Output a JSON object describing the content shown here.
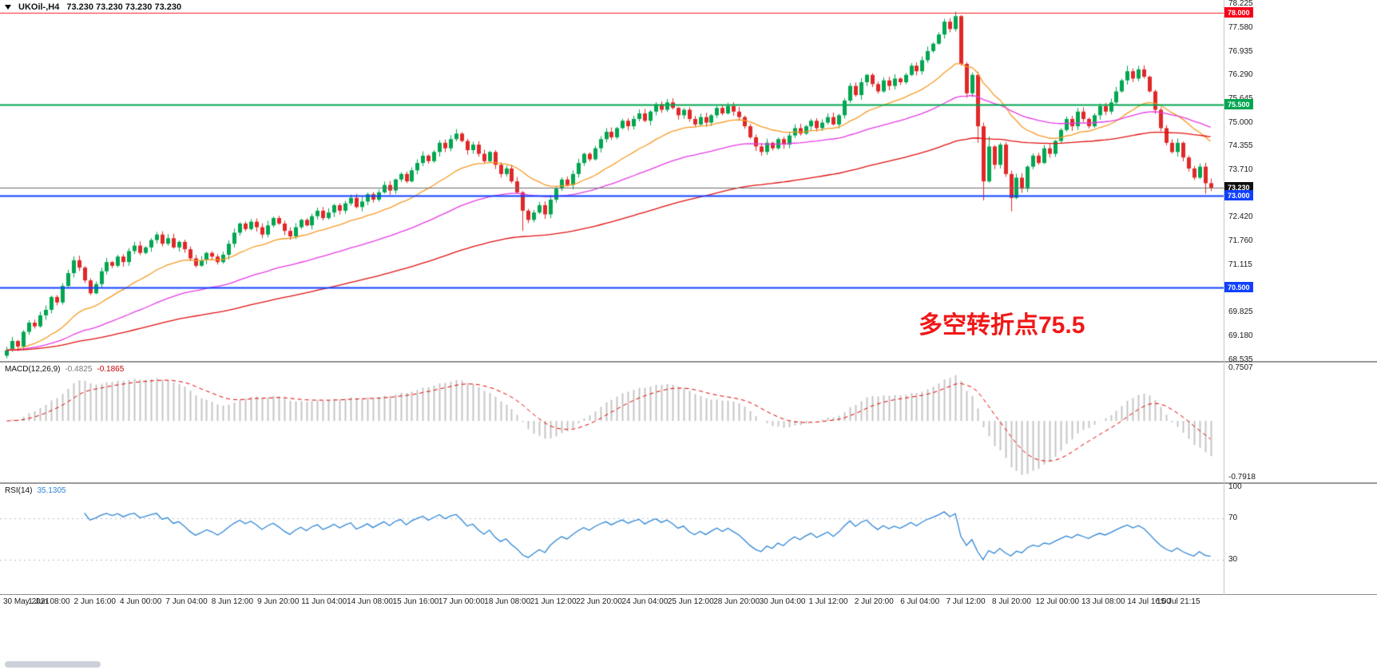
{
  "symbol_bar": {
    "symbol": "UKOil-,H4",
    "ohlc": "73.230 73.230 73.230 73.230"
  },
  "annotation": {
    "text": "多空转折点75.5",
    "color": "#f01818"
  },
  "colors": {
    "up": "#00a650",
    "down": "#e02828",
    "ma_fast": "#f59a23",
    "ma_mid": "#e53ae5",
    "ma_slow": "#e01010",
    "hline_red": "#ff1a1a",
    "hline_green": "#00a650",
    "hline_blue": "#1040ff",
    "price_line": "#6b6b6b",
    "macd_hist": "#c4c4c4",
    "macd_signal": "#e00000",
    "rsi_line": "#2f86d5",
    "rsi_level": "#b6bccd",
    "badge_current": "#101010"
  },
  "price_axis": {
    "ticks": [
      {
        "value": 78.225,
        "label": "78.225"
      },
      {
        "value": 77.58,
        "label": "77.580"
      },
      {
        "value": 76.935,
        "label": "76.935"
      },
      {
        "value": 76.29,
        "label": "76.290"
      },
      {
        "value": 75.645,
        "label": "75.645"
      },
      {
        "value": 75.0,
        "label": "75.000"
      },
      {
        "value": 74.355,
        "label": "74.355"
      },
      {
        "value": 73.71,
        "label": "73.710"
      },
      {
        "value": 72.42,
        "label": "72.420"
      },
      {
        "value": 71.76,
        "label": "71.760"
      },
      {
        "value": 71.115,
        "label": "71.115"
      },
      {
        "value": 69.825,
        "label": "69.825"
      },
      {
        "value": 69.18,
        "label": "69.180"
      },
      {
        "value": 68.535,
        "label": "68.535"
      }
    ],
    "badges": [
      {
        "value": 78.0,
        "label": "78.000",
        "bg": "#f60018"
      },
      {
        "value": 75.5,
        "label": "75.500",
        "bg": "#00a650"
      },
      {
        "value": 73.23,
        "label": "73.230",
        "bg": "#101010"
      },
      {
        "value": 73.0,
        "label": "73.000",
        "bg": "#1040ff"
      },
      {
        "value": 70.5,
        "label": "70.500",
        "bg": "#1040ff"
      }
    ]
  },
  "panes": {
    "macd": {
      "label": "MACD(12,26,9)",
      "value_main": "-0.4825",
      "value_signal": "-0.1865",
      "axis_top": "0.7507",
      "axis_bottom": "-0.7918"
    },
    "rsi": {
      "label": "RSI(14)",
      "value": "35.1305",
      "axis_labels": [
        "100",
        "70",
        "30"
      ]
    }
  },
  "time_axis": {
    "labels": [
      "30 May 2021",
      "1 Jun 08:00",
      "2 Jun 16:00",
      "4 Jun 00:00",
      "7 Jun 04:00",
      "8 Jun 12:00",
      "9 Jun 20:00",
      "11 Jun 04:00",
      "14 Jun 08:00",
      "15 Jun 16:00",
      "17 Jun 00:00",
      "18 Jun 08:00",
      "21 Jun 12:00",
      "22 Jun 20:00",
      "24 Jun 04:00",
      "25 Jun 12:00",
      "28 Jun 20:00",
      "30 Jun 04:00",
      "1 Jul 12:00",
      "2 Jul 20:00",
      "6 Jul 04:00",
      "7 Jul 12:00",
      "8 Jul 20:00",
      "12 Jul 00:00",
      "13 Jul 08:00",
      "14 Jul 16:00",
      "15 Jul 21:15"
    ]
  },
  "chart_data": [
    {
      "type": "candlestick",
      "symbol": "UKOil-",
      "timeframe": "H4",
      "ylim": [
        68.55,
        78.21
      ],
      "current_price": 73.23,
      "hlines": [
        {
          "value": 78.0,
          "color": "#ff1a1a",
          "width": 1
        },
        {
          "value": 75.5,
          "color": "#00a650",
          "width": 2
        },
        {
          "value": 73.0,
          "color": "#1040ff",
          "width": 2
        },
        {
          "value": 70.5,
          "color": "#1040ff",
          "width": 2
        }
      ],
      "moving_averages": [
        {
          "period": 21,
          "color": "#f59a23"
        },
        {
          "period": 55,
          "color": "#e53ae5"
        },
        {
          "period": 120,
          "color": "#e01010"
        }
      ],
      "closes": [
        68.8,
        69.05,
        68.9,
        69.3,
        69.55,
        69.45,
        69.75,
        69.9,
        70.25,
        70.1,
        70.55,
        70.9,
        71.25,
        71.05,
        70.7,
        70.35,
        70.6,
        70.95,
        71.2,
        71.1,
        71.35,
        71.2,
        71.5,
        71.65,
        71.45,
        71.6,
        71.8,
        71.95,
        71.7,
        71.85,
        71.6,
        71.75,
        71.55,
        71.3,
        71.1,
        71.25,
        71.45,
        71.35,
        71.2,
        71.4,
        71.7,
        72.0,
        72.25,
        72.1,
        72.3,
        72.15,
        71.95,
        72.2,
        72.4,
        72.25,
        72.05,
        71.9,
        72.15,
        72.35,
        72.2,
        72.45,
        72.6,
        72.4,
        72.55,
        72.75,
        72.6,
        72.8,
        72.95,
        72.7,
        72.85,
        73.05,
        72.9,
        73.1,
        73.3,
        73.15,
        73.45,
        73.6,
        73.4,
        73.7,
        73.9,
        74.1,
        73.95,
        74.2,
        74.45,
        74.3,
        74.55,
        74.7,
        74.5,
        74.25,
        74.4,
        74.15,
        73.95,
        74.2,
        73.85,
        73.6,
        73.75,
        73.4,
        73.1,
        72.6,
        72.35,
        72.55,
        72.75,
        72.5,
        72.9,
        73.2,
        73.45,
        73.3,
        73.6,
        73.9,
        74.15,
        74.0,
        74.3,
        74.55,
        74.75,
        74.6,
        74.85,
        75.05,
        74.9,
        75.1,
        75.25,
        75.05,
        75.3,
        75.5,
        75.35,
        75.55,
        75.4,
        75.2,
        75.35,
        75.1,
        74.95,
        75.15,
        75.0,
        75.2,
        75.4,
        75.25,
        75.45,
        75.3,
        75.15,
        74.9,
        74.6,
        74.35,
        74.2,
        74.45,
        74.3,
        74.55,
        74.4,
        74.65,
        74.85,
        74.7,
        74.9,
        75.05,
        74.85,
        75.0,
        75.15,
        74.95,
        75.2,
        75.6,
        76.0,
        75.75,
        76.1,
        76.3,
        76.05,
        75.85,
        76.15,
        76.0,
        76.2,
        76.1,
        76.3,
        76.55,
        76.4,
        76.7,
        76.95,
        77.15,
        77.4,
        77.75,
        77.55,
        77.9,
        76.6,
        75.8,
        76.3,
        74.9,
        73.4,
        74.35,
        73.85,
        74.4,
        73.6,
        72.95,
        73.5,
        73.2,
        73.8,
        74.1,
        73.9,
        74.3,
        74.15,
        74.5,
        74.8,
        75.1,
        74.9,
        75.3,
        75.1,
        74.9,
        75.2,
        75.45,
        75.3,
        75.55,
        75.85,
        76.15,
        76.4,
        76.2,
        76.45,
        76.25,
        75.85,
        75.35,
        74.85,
        74.45,
        74.2,
        74.45,
        74.05,
        73.75,
        73.5,
        73.8,
        73.35,
        73.23
      ],
      "wick_overrides": {
        "0": {
          "l": 68.58
        },
        "93": {
          "l": 72.05
        },
        "171": {
          "h": 78.02
        },
        "175": {
          "l": 74.45
        },
        "176": {
          "l": 72.88
        },
        "177": {
          "h": 74.62
        },
        "181": {
          "l": 72.58
        },
        "202": {
          "h": 76.55
        },
        "216": {
          "l": 73.06
        }
      }
    },
    {
      "type": "macd",
      "params": [
        12,
        26,
        9
      ],
      "values_current": {
        "macd": -0.4825,
        "signal": -0.1865
      },
      "ylim": [
        -0.7918,
        0.7507
      ]
    },
    {
      "type": "rsi",
      "period": 14,
      "value_current": 35.1305,
      "ylim": [
        0,
        100
      ],
      "levels": [
        30,
        70
      ]
    }
  ]
}
